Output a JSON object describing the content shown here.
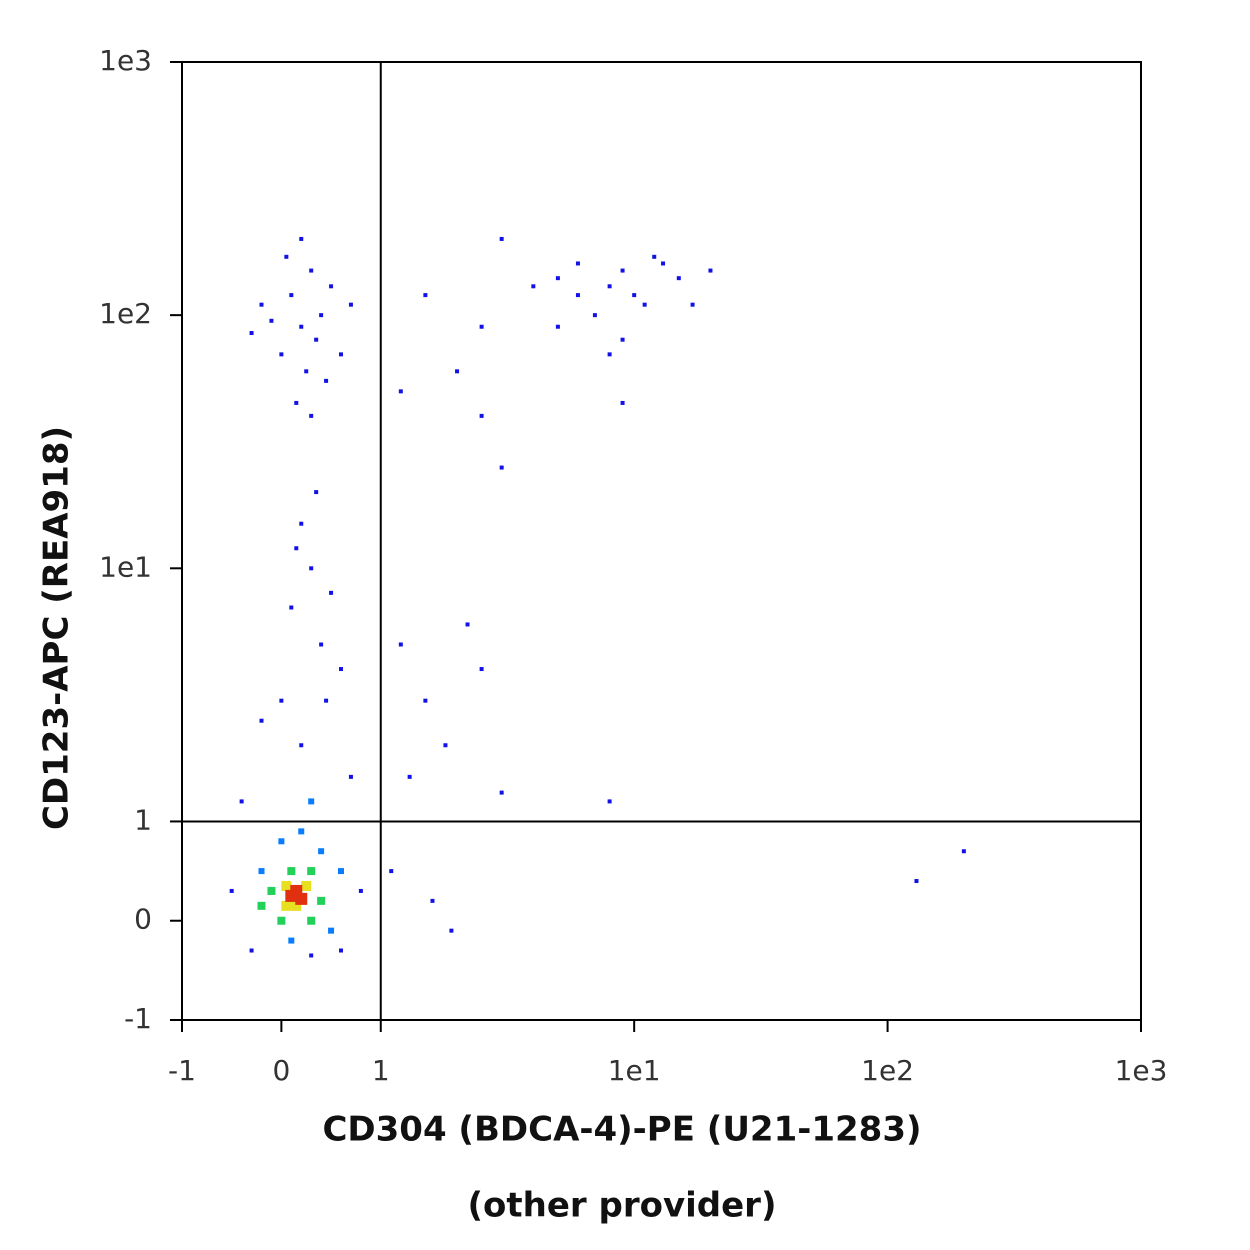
{
  "chart_data": {
    "type": "scatter",
    "scale": "biexponential",
    "x_label": "CD304 (BDCA-4)-PE (U21-1283)",
    "x_label_2": "(other provider)",
    "y_label": "CD123-APC (REA918)",
    "xlim": [
      -1,
      1000
    ],
    "ylim": [
      -1,
      1000
    ],
    "xticks": [
      -1,
      0,
      1,
      {
        "value": 10,
        "label": "1e1"
      },
      {
        "value": 100,
        "label": "1e2"
      },
      {
        "value": 1000,
        "label": "1e3"
      }
    ],
    "yticks": [
      -1,
      0,
      1,
      {
        "value": 10,
        "label": "1e1"
      },
      {
        "value": 100,
        "label": "1e2"
      },
      {
        "value": 1000,
        "label": "1e3"
      }
    ],
    "quadrant": {
      "x": 1,
      "y": 1
    },
    "series": [
      {
        "color": "#1212e6",
        "x": [
          0.1,
          0.2,
          0.3,
          0.0,
          0.4,
          0.25,
          -0.1,
          0.5,
          0.15,
          0.35,
          0.6,
          0.05,
          -0.2,
          0.45,
          0.3,
          0.2,
          0.7,
          -0.3,
          3,
          5,
          6,
          8,
          9,
          10,
          12,
          15,
          7,
          9,
          11,
          4,
          8,
          13,
          6,
          20,
          17,
          2.5,
          5,
          9,
          1.5,
          2,
          2.5,
          3,
          8,
          130,
          200,
          1.2,
          0.2,
          0.3,
          0.1,
          0.4,
          0.0,
          0.5,
          0.2,
          0.6,
          -0.2,
          0.35,
          0.7,
          -0.4,
          0.15,
          0.45,
          1.2,
          1.5,
          1.8,
          2.2,
          1.3,
          2.5,
          3,
          1.1,
          1.6,
          1.9,
          -0.3,
          0.6,
          0.8,
          -0.5,
          0.3
        ],
        "y": [
          120,
          90,
          150,
          70,
          100,
          60,
          95,
          130,
          45,
          80,
          70,
          170,
          110,
          55,
          40,
          200,
          110,
          85,
          200,
          140,
          160,
          130,
          150,
          120,
          170,
          140,
          100,
          80,
          110,
          130,
          70,
          160,
          120,
          150,
          110,
          90,
          90,
          45,
          120,
          60,
          40,
          25,
          1.2,
          0.4,
          0.7,
          50,
          15,
          10,
          7,
          5,
          3,
          8,
          2,
          4,
          2.5,
          20,
          1.5,
          1.2,
          12,
          3,
          5,
          3,
          2,
          6,
          1.5,
          4,
          1.3,
          0.5,
          0.2,
          -0.1,
          -0.3,
          -0.3,
          0.3,
          0.3,
          -0.35
        ]
      },
      {
        "color": "#0a7cff",
        "x": [
          0.2,
          0.0,
          0.4,
          -0.2,
          0.6,
          0.3,
          0.1,
          0.5
        ],
        "y": [
          0.9,
          0.8,
          0.7,
          0.5,
          0.5,
          1.2,
          -0.2,
          -0.1
        ]
      },
      {
        "color": "#22d05a",
        "x": [
          0.1,
          0.3,
          -0.1,
          0.4,
          0.0,
          0.3,
          -0.2
        ],
        "y": [
          0.5,
          0.5,
          0.3,
          0.2,
          0.0,
          0.0,
          0.15
        ]
      },
      {
        "color": "#e6e020",
        "x": [
          0.05,
          0.25,
          0.15,
          0.05
        ],
        "y": [
          0.35,
          0.35,
          0.15,
          0.15
        ]
      },
      {
        "color": "#e03010",
        "x": [
          0.1,
          0.15,
          0.2
        ],
        "y": [
          0.25,
          0.3,
          0.22
        ]
      }
    ]
  }
}
